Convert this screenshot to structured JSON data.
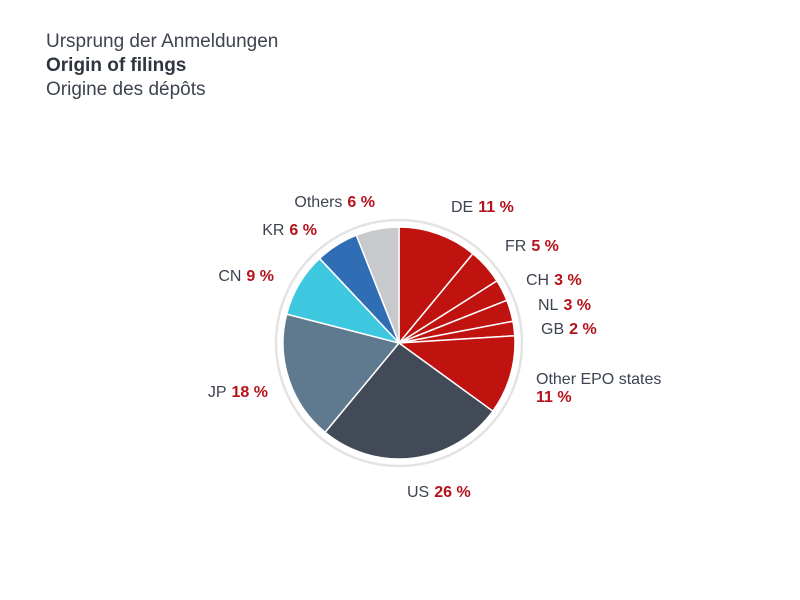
{
  "titles": {
    "german": "Ursprung der Anmeldungen",
    "english": "Origin of filings",
    "french": "Origine des dépôts"
  },
  "colors": {
    "label_text": "#3d4350",
    "value_text": "#b5121b",
    "ring": "#e3e3e3",
    "slice_border": "#ffffff"
  },
  "chart_data": {
    "type": "pie",
    "start": "12 o'clock",
    "direction": "clockwise",
    "value_unit": "%",
    "slices": [
      {
        "name": "DE",
        "value": 11,
        "value_label": "11 %",
        "color": "#c0120f"
      },
      {
        "name": "FR",
        "value": 5,
        "value_label": "5 %",
        "color": "#c0120f"
      },
      {
        "name": "CH",
        "value": 3,
        "value_label": "3 %",
        "color": "#c0120f"
      },
      {
        "name": "NL",
        "value": 3,
        "value_label": "3 %",
        "color": "#c0120f"
      },
      {
        "name": "GB",
        "value": 2,
        "value_label": "2 %",
        "color": "#c0120f"
      },
      {
        "name": "Other EPO states",
        "value": 11,
        "value_label": "11 %",
        "color": "#c0120f"
      },
      {
        "name": "US",
        "value": 26,
        "value_label": "26 %",
        "color": "#424a57"
      },
      {
        "name": "JP",
        "value": 18,
        "value_label": "18 %",
        "color": "#5f7a8f"
      },
      {
        "name": "CN",
        "value": 9,
        "value_label": "9 %",
        "color": "#3ec8df"
      },
      {
        "name": "KR",
        "value": 6,
        "value_label": "6 %",
        "color": "#2f6eb5"
      },
      {
        "name": "Others",
        "value": 6,
        "value_label": "6 %",
        "color": "#c7c9cd"
      }
    ]
  }
}
